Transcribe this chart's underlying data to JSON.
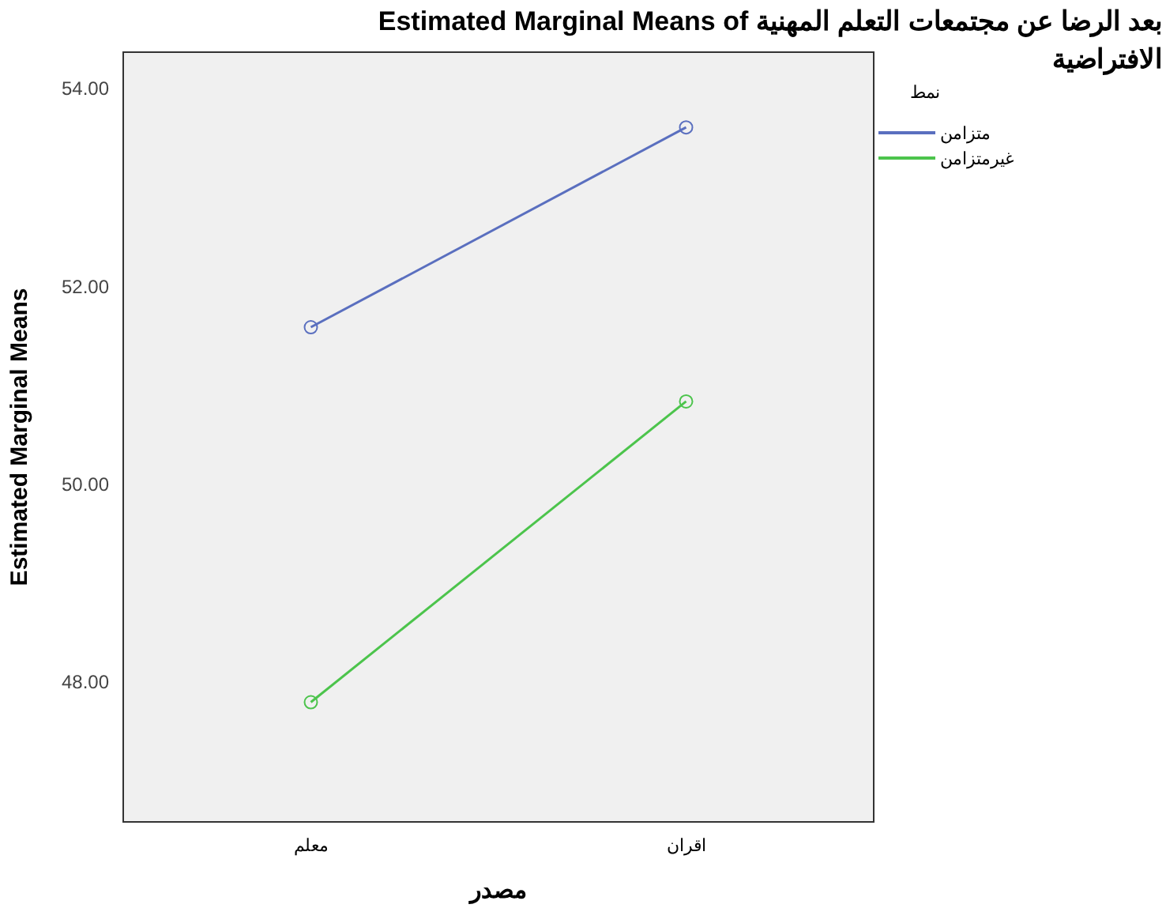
{
  "chart_data": {
    "type": "line",
    "title": "Estimated Marginal Means of بعد الرضا عن مجتمعات التعلم المهنية الافتراضية",
    "xlabel": "مصدر",
    "ylabel": "Estimated Marginal Means",
    "legend_title": "نمط",
    "categories": [
      "معلم",
      "اقران"
    ],
    "series": [
      {
        "name": "متزامن",
        "color": "#5a6fbf",
        "values": [
          51.6,
          53.62
        ]
      },
      {
        "name": "غيرمتزامن",
        "color": "#4cc44c",
        "values": [
          47.81,
          50.85
        ]
      }
    ],
    "ylim": [
      46.6,
      54.38
    ],
    "yticks": [
      {
        "value": 48,
        "label": "48.00"
      },
      {
        "value": 50,
        "label": "50.00"
      },
      {
        "value": 52,
        "label": "52.00"
      },
      {
        "value": 54,
        "label": "54.00"
      }
    ],
    "grid": false,
    "legend": "top right",
    "marker": "circle",
    "line_style": "solid"
  }
}
